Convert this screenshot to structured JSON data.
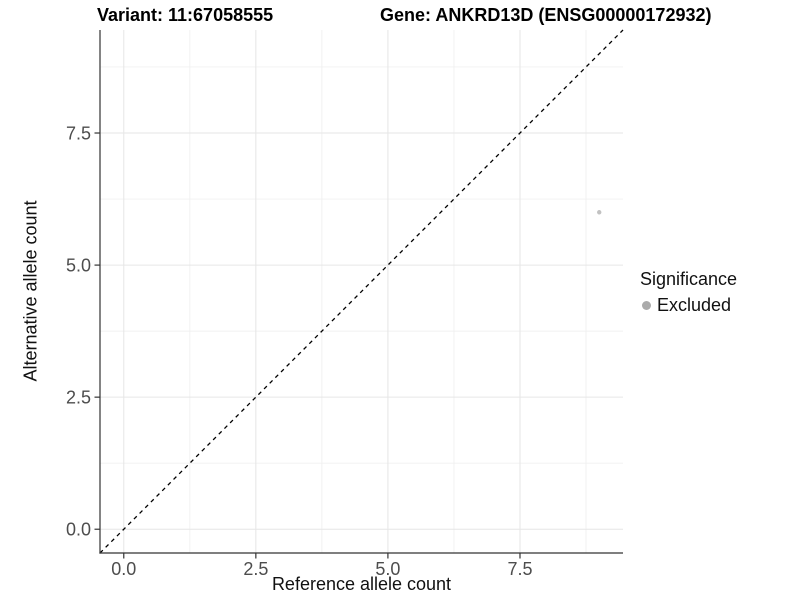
{
  "titles": {
    "variant": "Variant: 11:67058555",
    "gene": "Gene: ANKRD13D (ENSG00000172932)"
  },
  "colors": {
    "background": "#ffffff",
    "axis_line": "#333333",
    "tick_mark": "#333333",
    "tick_label": "#4d4d4d",
    "grid_major": "#e6e6e6",
    "grid_minor": "#f0f0f0",
    "identity_line": "#000000",
    "point": "#c2c2c2",
    "legend_dot": "#ababab"
  },
  "chart_data": {
    "type": "scatter",
    "title": "Variant: 11:67058555   Gene: ANKRD13D (ENSG00000172932)",
    "xlabel": "Reference allele count",
    "ylabel": "Alternative allele count",
    "xlim": [
      -0.45,
      9.45
    ],
    "ylim": [
      -0.45,
      9.45
    ],
    "x_ticks": [
      0,
      2.5,
      5,
      7.5
    ],
    "x_tick_labels": [
      "0.0",
      "2.5",
      "5.0",
      "7.5"
    ],
    "y_ticks": [
      0,
      2.5,
      5,
      7.5
    ],
    "y_tick_labels": [
      "0.0",
      "2.5",
      "5.0",
      "7.5"
    ],
    "x_minor_ticks": [
      1.25,
      3.75,
      6.25,
      8.75
    ],
    "y_minor_ticks": [
      1.25,
      3.75,
      6.25,
      8.75
    ],
    "grid": true,
    "reference_line": {
      "type": "abline",
      "slope": 1,
      "intercept": 0,
      "style": "dashed",
      "color": "#000000"
    },
    "series": [
      {
        "name": "Excluded",
        "color": "#c2c2c2",
        "points": [
          {
            "x": 9,
            "y": 6
          }
        ]
      }
    ],
    "legend": {
      "title": "Significance",
      "position": "right",
      "items": [
        {
          "label": "Excluded",
          "color": "#ababab"
        }
      ]
    }
  }
}
